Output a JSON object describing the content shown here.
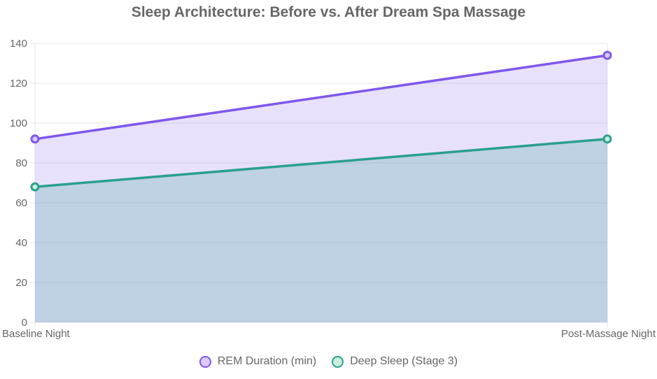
{
  "chart_data": {
    "type": "area",
    "title": "Sleep Architecture: Before vs. After Dream Spa Massage",
    "categories": [
      "Baseline Night",
      "Post-Massage Night"
    ],
    "series": [
      {
        "name": "REM Duration (min)",
        "values": [
          92,
          134
        ],
        "line_color": "#7e57ec",
        "point_fill": "#dccbfa",
        "area_fill": "rgba(126,87,236,0.18)"
      },
      {
        "name": "Deep Sleep (Stage 3)",
        "values": [
          68,
          92
        ],
        "line_color": "#2aa08f",
        "point_fill": "#c9efdc",
        "area_fill": "rgba(42,160,143,0.22)"
      }
    ],
    "ylim": [
      0,
      140
    ],
    "yticks": [
      0,
      20,
      40,
      60,
      80,
      100,
      120,
      140
    ],
    "grid": true,
    "legend_position": "bottom",
    "xlabel": "",
    "ylabel": ""
  },
  "colors": {
    "gridline": "#e7e7e7",
    "axis_text": "#666666",
    "title_text": "#666666",
    "background": "#ffffff"
  }
}
